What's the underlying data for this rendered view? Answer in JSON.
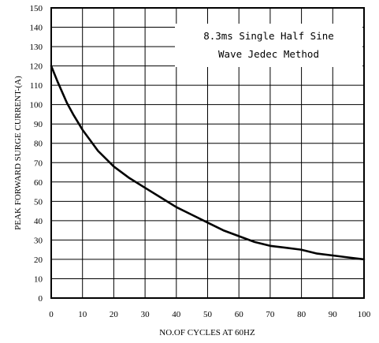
{
  "chart_data": {
    "type": "line",
    "xlabel": "NO.OF CYCLES AT 60HZ",
    "ylabel": "PEAK FORWARD SURGE CURRENT-(A)",
    "xlim": [
      0,
      100
    ],
    "ylim": [
      0,
      150
    ],
    "x_ticks": [
      0,
      10,
      20,
      30,
      40,
      50,
      60,
      70,
      80,
      90,
      100
    ],
    "y_ticks": [
      0,
      10,
      20,
      30,
      40,
      50,
      60,
      70,
      80,
      90,
      100,
      110,
      120,
      130,
      140,
      150
    ],
    "grid": true,
    "annotation_lines": [
      "8.3ms Single Half Sine",
      "Wave Jedec Method"
    ],
    "series": [
      {
        "x": [
          0,
          2,
          5,
          7,
          10,
          15,
          20,
          25,
          30,
          35,
          40,
          45,
          50,
          55,
          60,
          65,
          70,
          75,
          80,
          85,
          90,
          95,
          100
        ],
        "y": [
          120,
          112,
          101,
          95,
          87,
          76,
          68,
          62,
          57,
          52,
          47,
          43,
          39,
          35,
          32,
          29,
          27,
          26,
          25,
          23,
          22,
          21,
          20
        ]
      }
    ]
  }
}
